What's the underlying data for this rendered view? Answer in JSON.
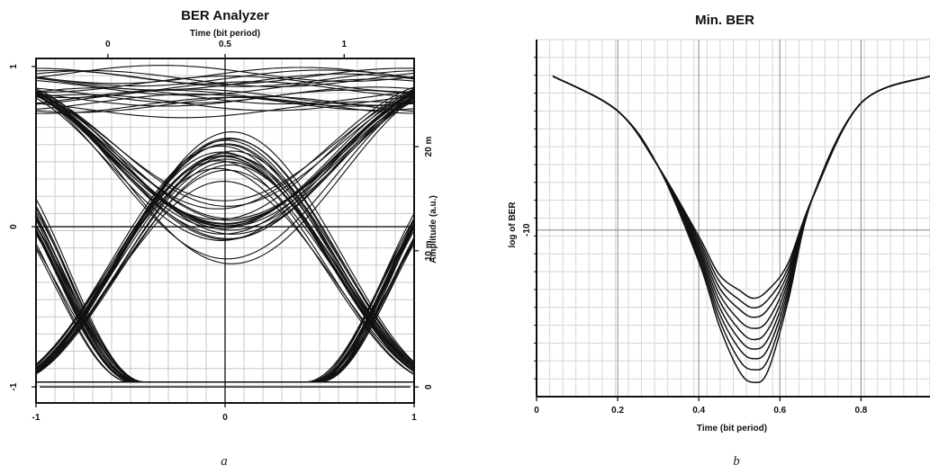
{
  "chart_data": [
    {
      "type": "line",
      "title": "BER Analyzer",
      "top_xlabel": "Time (bit period)",
      "right_ylabel": "Amplitude (a.u.)",
      "sublabel": "a",
      "bottom_ticks": [
        "-1",
        "0",
        "1"
      ],
      "top_ticks": [
        "0",
        "0.5",
        "1"
      ],
      "left_ticks": [
        "1",
        "0",
        "-1"
      ],
      "right_ticks": [
        "20 m",
        "10 m",
        "0"
      ],
      "xlim": [
        -1,
        1
      ],
      "ylim": [
        -1.1,
        1.05
      ],
      "grid": true,
      "traces": 20,
      "eye_shape": {
        "high_level": 0.85,
        "low_level": -0.97,
        "crossing_x": [
          -0.63,
          0.63
        ],
        "eye_top_at_center": 0.43,
        "eye_bottom_at_center": -0.97
      }
    },
    {
      "type": "line",
      "title": "Min. BER",
      "xlabel": "Time (bit period)",
      "ylabel": "log of BER",
      "sublabel": "b",
      "x_ticks": [
        "0",
        "0.2",
        "0.4",
        "0.6",
        "0.8"
      ],
      "y_ticks": [
        "-10"
      ],
      "xlim": [
        0,
        0.97
      ],
      "ylim": [
        -20.5,
        2
      ],
      "grid": true,
      "series": [
        {
          "x": [
            0.04,
            0.2,
            0.3,
            0.4,
            0.45,
            0.5,
            0.535,
            0.57,
            0.62,
            0.68,
            0.8,
            0.97
          ],
          "y": [
            -0.3,
            -2.5,
            -6.0,
            -12.0,
            -16.0,
            -18.9,
            -19.6,
            -18.9,
            -14.5,
            -8.0,
            -2.0,
            -0.3
          ]
        },
        {
          "x": [
            0.04,
            0.2,
            0.3,
            0.4,
            0.45,
            0.5,
            0.535,
            0.57,
            0.62,
            0.68,
            0.8,
            0.97
          ],
          "y": [
            -0.3,
            -2.5,
            -6.0,
            -11.8,
            -15.6,
            -18.2,
            -18.8,
            -18.2,
            -14.2,
            -8.0,
            -2.0,
            -0.3
          ]
        },
        {
          "x": [
            0.04,
            0.2,
            0.3,
            0.4,
            0.45,
            0.5,
            0.535,
            0.57,
            0.62,
            0.68,
            0.8,
            0.97
          ],
          "y": [
            -0.3,
            -2.5,
            -6.0,
            -11.6,
            -15.2,
            -17.5,
            -18.1,
            -17.5,
            -13.9,
            -8.0,
            -2.0,
            -0.3
          ]
        },
        {
          "x": [
            0.04,
            0.2,
            0.3,
            0.4,
            0.45,
            0.5,
            0.535,
            0.57,
            0.62,
            0.68,
            0.8,
            0.97
          ],
          "y": [
            -0.3,
            -2.5,
            -6.0,
            -11.4,
            -14.8,
            -16.9,
            -17.5,
            -16.9,
            -13.6,
            -8.0,
            -2.0,
            -0.3
          ]
        },
        {
          "x": [
            0.04,
            0.2,
            0.3,
            0.4,
            0.45,
            0.5,
            0.535,
            0.57,
            0.62,
            0.68,
            0.8,
            0.97
          ],
          "y": [
            -0.3,
            -2.5,
            -6.0,
            -11.2,
            -14.4,
            -16.3,
            -16.9,
            -16.3,
            -13.3,
            -8.0,
            -2.0,
            -0.3
          ]
        },
        {
          "x": [
            0.04,
            0.2,
            0.3,
            0.4,
            0.45,
            0.5,
            0.535,
            0.57,
            0.62,
            0.68,
            0.8,
            0.97
          ],
          "y": [
            -0.3,
            -2.5,
            -6.0,
            -11.0,
            -14.0,
            -15.7,
            -16.2,
            -15.7,
            -13.0,
            -8.0,
            -2.0,
            -0.3
          ]
        },
        {
          "x": [
            0.04,
            0.2,
            0.3,
            0.4,
            0.45,
            0.5,
            0.535,
            0.57,
            0.62,
            0.68,
            0.8,
            0.97
          ],
          "y": [
            -0.3,
            -2.5,
            -6.0,
            -10.8,
            -13.6,
            -15.0,
            -15.5,
            -15.0,
            -12.7,
            -8.0,
            -2.0,
            -0.3
          ]
        },
        {
          "x": [
            0.04,
            0.2,
            0.3,
            0.4,
            0.45,
            0.5,
            0.535,
            0.57,
            0.62,
            0.68,
            0.8,
            0.97
          ],
          "y": [
            -0.3,
            -2.5,
            -6.0,
            -10.6,
            -13.2,
            -14.4,
            -14.9,
            -14.4,
            -12.4,
            -8.0,
            -2.0,
            -0.3
          ]
        },
        {
          "x": [
            0.04,
            0.2,
            0.3,
            0.4,
            0.45,
            0.5,
            0.535,
            0.57,
            0.62,
            0.68,
            0.8,
            0.97
          ],
          "y": [
            -0.3,
            -2.5,
            -6.0,
            -10.4,
            -12.8,
            -13.8,
            -14.3,
            -13.8,
            -12.1,
            -8.0,
            -2.0,
            -0.3
          ]
        }
      ]
    }
  ]
}
